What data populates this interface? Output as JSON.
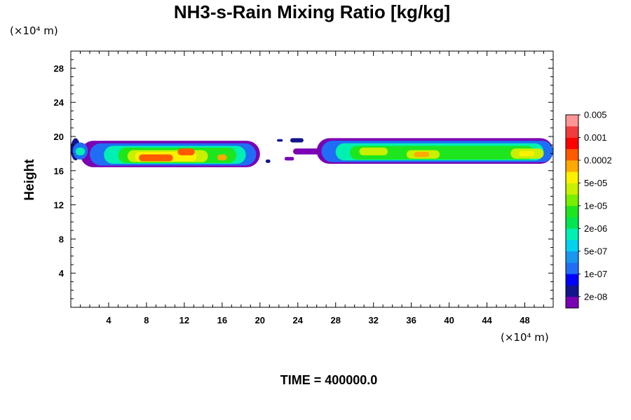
{
  "chart_data": {
    "type": "heatmap",
    "title": "NH3-s-Rain Mixing Ratio [kg/kg]",
    "ylabel": "Height",
    "xlabel": "",
    "x_unit": "(×10⁴ m)",
    "y_unit": "(×10⁴ m)",
    "xlim": [
      0,
      51
    ],
    "ylim": [
      0,
      30
    ],
    "x_ticks": [
      4,
      8,
      12,
      16,
      20,
      24,
      28,
      32,
      36,
      40,
      44,
      48
    ],
    "y_ticks": [
      4,
      8,
      12,
      16,
      20,
      24,
      28
    ],
    "grid": false,
    "footer": "TIME = 400000.0",
    "colorbar": {
      "colors": [
        "#7a00b4",
        "#14148c",
        "#0000ff",
        "#1f6ef5",
        "#1996f0",
        "#00d2f0",
        "#00f0b4",
        "#00e650",
        "#1ee61e",
        "#78f000",
        "#c8f000",
        "#fff000",
        "#ffaa00",
        "#ff5a00",
        "#ff0000",
        "#f03c3c",
        "#ff9696"
      ],
      "labels": [
        "2e-08",
        "1e-07",
        "5e-07",
        "2e-06",
        "1e-05",
        "5e-05",
        "0.0002",
        "0.001",
        "0.005"
      ]
    },
    "cells": [
      {
        "x": 0.0,
        "w": 1.0,
        "y": 17.2,
        "h": 2.6,
        "c": 1
      },
      {
        "x": 1.0,
        "w": 19.0,
        "y": 16.4,
        "h": 3.1,
        "c": 0
      },
      {
        "x": 0.2,
        "w": 1.6,
        "y": 17.3,
        "h": 2.0,
        "c": 3
      },
      {
        "x": 0.5,
        "w": 1.0,
        "y": 17.8,
        "h": 0.9,
        "c": 6
      },
      {
        "x": 2.0,
        "w": 17.6,
        "y": 16.6,
        "h": 2.6,
        "c": 3
      },
      {
        "x": 3.5,
        "w": 15.0,
        "y": 16.8,
        "h": 2.1,
        "c": 6
      },
      {
        "x": 5.0,
        "w": 12.5,
        "y": 16.9,
        "h": 1.8,
        "c": 8
      },
      {
        "x": 6.0,
        "w": 8.5,
        "y": 17.0,
        "h": 1.4,
        "c": 10
      },
      {
        "x": 6.8,
        "w": 6.5,
        "y": 17.1,
        "h": 1.1,
        "c": 11
      },
      {
        "x": 7.2,
        "w": 3.6,
        "y": 17.1,
        "h": 0.8,
        "c": 13
      },
      {
        "x": 11.3,
        "w": 1.8,
        "y": 17.8,
        "h": 0.8,
        "c": 13
      },
      {
        "x": 15.5,
        "w": 1.0,
        "y": 17.2,
        "h": 0.7,
        "c": 12
      },
      {
        "x": 20.6,
        "w": 0.5,
        "y": 16.9,
        "h": 0.4,
        "c": 1
      },
      {
        "x": 21.8,
        "w": 0.6,
        "y": 19.4,
        "h": 0.3,
        "c": 1
      },
      {
        "x": 23.2,
        "w": 1.4,
        "y": 19.3,
        "h": 0.5,
        "c": 1
      },
      {
        "x": 22.6,
        "w": 1.0,
        "y": 17.2,
        "h": 0.4,
        "c": 0
      },
      {
        "x": 23.5,
        "w": 3.0,
        "y": 17.9,
        "h": 0.7,
        "c": 0
      },
      {
        "x": 26.0,
        "w": 25.0,
        "y": 16.8,
        "h": 3.0,
        "c": 0
      },
      {
        "x": 26.5,
        "w": 24.5,
        "y": 17.0,
        "h": 2.5,
        "c": 3
      },
      {
        "x": 28.0,
        "w": 22.0,
        "y": 17.2,
        "h": 2.0,
        "c": 6
      },
      {
        "x": 29.5,
        "w": 19.5,
        "y": 17.3,
        "h": 1.6,
        "c": 8
      },
      {
        "x": 30.5,
        "w": 3.0,
        "y": 17.8,
        "h": 0.9,
        "c": 10
      },
      {
        "x": 35.5,
        "w": 3.5,
        "y": 17.4,
        "h": 1.0,
        "c": 10
      },
      {
        "x": 36.3,
        "w": 1.6,
        "y": 17.6,
        "h": 0.6,
        "c": 12
      },
      {
        "x": 46.5,
        "w": 3.5,
        "y": 17.4,
        "h": 1.2,
        "c": 10
      },
      {
        "x": 47.4,
        "w": 1.6,
        "y": 17.7,
        "h": 0.6,
        "c": 11
      }
    ]
  }
}
